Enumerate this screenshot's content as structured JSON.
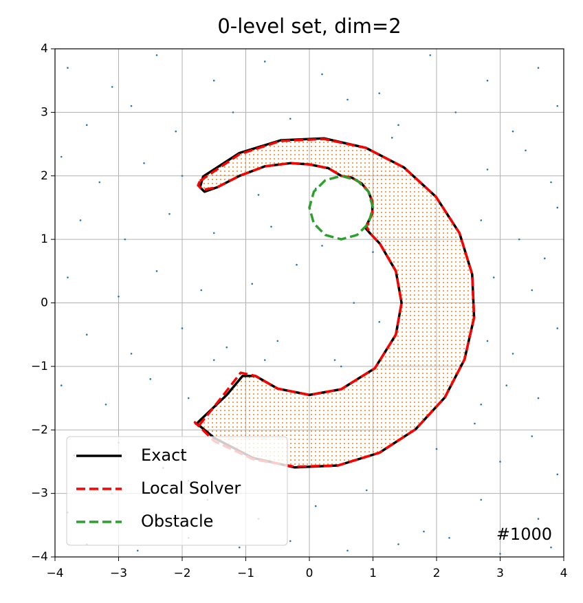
{
  "chart_data": {
    "type": "line",
    "title": "0-level set, dim=2",
    "annotation": "#1000",
    "xlim": [
      -4,
      4
    ],
    "ylim": [
      -4,
      4
    ],
    "xticks": [
      {
        "value": -4,
        "label": "−4"
      },
      {
        "value": -3,
        "label": "−3"
      },
      {
        "value": -2,
        "label": "−2"
      },
      {
        "value": -1,
        "label": "−1"
      },
      0,
      1,
      2,
      3,
      4
    ],
    "yticks": [
      {
        "value": -4,
        "label": "−4"
      },
      {
        "value": -3,
        "label": "−3"
      },
      {
        "value": -2,
        "label": "−2"
      },
      {
        "value": -1,
        "label": "−1"
      },
      0,
      1,
      2,
      3,
      4
    ],
    "grid": true,
    "legend": "lower left",
    "region_color": "#ff7f0e",
    "samples": {
      "color": "#1f77b4",
      "x": [
        -3.8,
        -3.1,
        -2.4,
        -1.5,
        -0.7,
        0.2,
        1.1,
        1.9,
        2.8,
        3.6,
        -3.5,
        -2.8,
        -2.1,
        -1.2,
        -0.3,
        0.6,
        1.4,
        2.3,
        3.2,
        3.9,
        -3.9,
        -3.3,
        -2.6,
        -2.0,
        -0.8,
        0.1,
        1.3,
        2.8,
        3.4,
        3.8,
        -3.6,
        -2.9,
        -2.2,
        -1.5,
        -0.6,
        0.2,
        1.0,
        2.7,
        3.3,
        3.9,
        -3.8,
        -3.0,
        -2.4,
        -1.7,
        -0.9,
        -0.2,
        0.7,
        2.9,
        3.5,
        3.7,
        -3.5,
        -2.8,
        -2.0,
        -1.3,
        -0.5,
        0.4,
        1.1,
        2.8,
        3.2,
        3.9,
        -3.9,
        -3.2,
        -2.5,
        -1.9,
        -0.7,
        0.5,
        2.7,
        3.1,
        3.6,
        -1.5,
        -3.7,
        -3.0,
        -2.3,
        -1.9,
        2.0,
        2.6,
        3.0,
        3.5,
        3.9,
        -1.6,
        -3.8,
        -3.1,
        -2.4,
        -1.6,
        -0.8,
        0.1,
        0.9,
        1.8,
        2.7,
        3.6,
        -3.5,
        -2.7,
        -1.9,
        -1.1,
        -0.3,
        0.6,
        1.4,
        2.2,
        3.0,
        3.8
      ],
      "y": [
        3.7,
        3.4,
        3.9,
        3.5,
        3.8,
        3.6,
        3.3,
        3.9,
        3.5,
        3.7,
        2.8,
        3.1,
        2.7,
        3.0,
        2.9,
        3.2,
        2.8,
        3.0,
        2.7,
        3.1,
        2.3,
        1.9,
        2.2,
        2.0,
        1.7,
        1.8,
        2.6,
        2.1,
        2.4,
        1.9,
        1.3,
        1.0,
        1.4,
        1.1,
        1.2,
        0.9,
        0.8,
        1.3,
        1.0,
        1.5,
        0.4,
        0.1,
        0.5,
        0.2,
        0.3,
        0.6,
        0.0,
        0.4,
        0.2,
        0.7,
        -0.5,
        -0.8,
        -0.4,
        -0.7,
        -0.6,
        -0.9,
        -0.3,
        -0.6,
        -0.8,
        -0.4,
        -1.3,
        -1.6,
        -1.2,
        -1.5,
        -0.9,
        -1.0,
        -1.6,
        -1.3,
        -1.5,
        -0.9,
        -2.4,
        -2.2,
        -2.6,
        -2.8,
        -2.3,
        -1.9,
        -2.5,
        -2.1,
        -2.7,
        -2.9,
        -3.3,
        -3.0,
        -3.5,
        -3.1,
        -3.4,
        -3.2,
        -2.95,
        -3.6,
        -3.1,
        -3.4,
        -3.8,
        -3.9,
        -3.7,
        -3.85,
        -3.75,
        -3.9,
        -3.8,
        -3.7,
        -3.95,
        -3.85
      ]
    },
    "series": [
      {
        "name": "Exact",
        "color": "#000000",
        "dash": false,
        "closed": true,
        "x": [
          -1.67,
          -1.1,
          -0.45,
          0.23,
          0.89,
          1.49,
          1.99,
          2.36,
          2.56,
          2.59,
          2.44,
          2.13,
          1.67,
          1.1,
          0.45,
          -0.23,
          -0.89,
          -1.49,
          -1.77,
          -1.72,
          -1.3,
          -1.05,
          -0.85,
          -0.5,
          0.0,
          0.5,
          1.03,
          1.36,
          1.45,
          1.36,
          1.11,
          0.95,
          0.88,
          0.99,
          0.99,
          0.93,
          0.82,
          0.67,
          0.5,
          0.3,
          0.0,
          -0.3,
          -0.7,
          -1.1,
          -1.45,
          -1.65,
          -1.72
        ],
        "y": [
          1.99,
          2.36,
          2.56,
          2.59,
          2.44,
          2.13,
          1.67,
          1.1,
          0.45,
          -0.23,
          -0.89,
          -1.49,
          -1.99,
          -2.36,
          -2.56,
          -2.59,
          -2.44,
          -2.13,
          -1.9,
          -1.85,
          -1.45,
          -1.15,
          -1.15,
          -1.35,
          -1.45,
          -1.36,
          -1.03,
          -0.5,
          0.0,
          0.5,
          0.93,
          1.1,
          1.18,
          1.41,
          1.59,
          1.75,
          1.88,
          1.97,
          2.0,
          2.12,
          2.18,
          2.2,
          2.15,
          2.0,
          1.82,
          1.75,
          1.82
        ]
      },
      {
        "name": "Local Solver",
        "color": "#ff0000",
        "dash": true,
        "closed": true,
        "x": [
          -1.72,
          -1.1,
          -0.45,
          0.23,
          0.89,
          1.49,
          1.99,
          2.36,
          2.56,
          2.59,
          2.44,
          2.13,
          1.67,
          1.1,
          0.45,
          -0.23,
          -0.89,
          -1.49,
          -1.8,
          -1.75,
          -1.35,
          -1.08,
          -0.85,
          -0.5,
          0.0,
          0.5,
          1.03,
          1.36,
          1.45,
          1.36,
          1.11,
          0.95,
          0.9,
          0.99,
          0.99,
          0.93,
          0.82,
          0.67,
          0.5,
          0.3,
          0.0,
          -0.3,
          -0.7,
          -1.1,
          -1.45,
          -1.68,
          -1.75
        ],
        "y": [
          1.92,
          2.34,
          2.55,
          2.58,
          2.44,
          2.13,
          1.67,
          1.1,
          0.45,
          -0.23,
          -0.89,
          -1.49,
          -1.99,
          -2.36,
          -2.56,
          -2.58,
          -2.46,
          -2.18,
          -1.88,
          -1.95,
          -1.45,
          -1.1,
          -1.15,
          -1.35,
          -1.45,
          -1.36,
          -1.03,
          -0.5,
          0.0,
          0.5,
          0.93,
          1.1,
          1.2,
          1.41,
          1.59,
          1.75,
          1.88,
          1.97,
          2.0,
          2.12,
          2.18,
          2.2,
          2.15,
          2.0,
          1.82,
          1.78,
          1.85
        ]
      },
      {
        "name": "Obstacle",
        "color": "#2ca02c",
        "dash": true,
        "closed": true,
        "x": [
          1.0,
          0.93,
          0.75,
          0.5,
          0.25,
          0.07,
          0.0,
          0.07,
          0.25,
          0.5,
          0.75,
          0.93
        ],
        "y": [
          1.5,
          1.75,
          1.93,
          2.0,
          1.93,
          1.75,
          1.5,
          1.25,
          1.07,
          1.0,
          1.07,
          1.25
        ]
      }
    ]
  }
}
